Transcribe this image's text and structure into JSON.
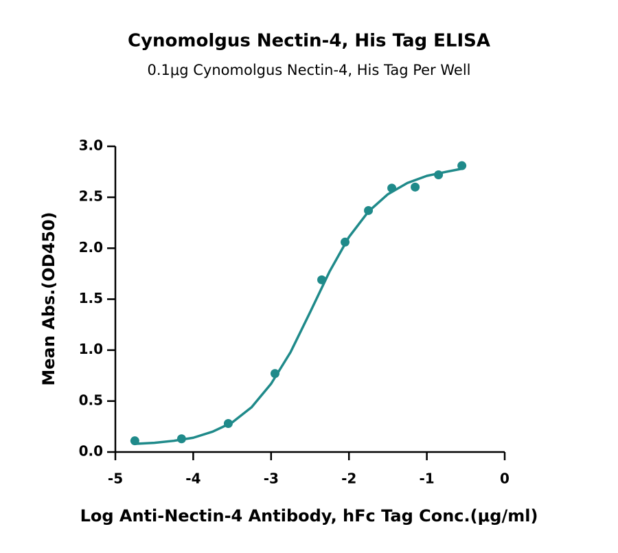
{
  "chart_data": {
    "type": "scatter",
    "title": "Cynomolgus Nectin-4, His Tag ELISA",
    "subtitle": "0.1μg Cynomolgus Nectin-4, His Tag Per Well",
    "x_label": "Log Anti-Nectin-4 Antibody, hFc Tag Conc.(μg/ml)",
    "y_label": "Mean Abs.(OD450)",
    "xlim": [
      -5,
      0
    ],
    "ylim": [
      0,
      3
    ],
    "xticks": [
      -5,
      -4,
      -3,
      -2,
      -1,
      0
    ],
    "yticks": [
      {
        "value": 0,
        "label": "0.0"
      },
      {
        "value": 0.5,
        "label": "0.5"
      },
      {
        "value": 1,
        "label": "1.0"
      },
      {
        "value": 1.5,
        "label": "1.5"
      },
      {
        "value": 2,
        "label": "2.0"
      },
      {
        "value": 2.5,
        "label": "2.5"
      },
      {
        "value": 3,
        "label": "3.0"
      }
    ],
    "grid": false,
    "series": [
      {
        "type": "scatter",
        "color": "#1f8a8a",
        "x": [
          -4.75,
          -4.15,
          -3.55,
          -2.95,
          -2.35,
          -2.05,
          -1.75,
          -1.45,
          -1.15,
          -0.85,
          -0.55
        ],
        "values": [
          0.11,
          0.13,
          0.28,
          0.77,
          1.69,
          2.06,
          2.37,
          2.59,
          2.6,
          2.72,
          2.81
        ]
      },
      {
        "type": "line",
        "color": "#1f8a8a",
        "x": [
          -4.75,
          -4.5,
          -4.25,
          -4,
          -3.75,
          -3.5,
          -3.25,
          -3,
          -2.75,
          -2.5,
          -2.25,
          -2,
          -1.75,
          -1.5,
          -1.25,
          -1,
          -0.75,
          -0.55
        ],
        "values": [
          0.08,
          0.09,
          0.11,
          0.14,
          0.2,
          0.29,
          0.44,
          0.67,
          0.98,
          1.37,
          1.77,
          2.11,
          2.36,
          2.53,
          2.64,
          2.71,
          2.75,
          2.78
        ]
      }
    ]
  }
}
